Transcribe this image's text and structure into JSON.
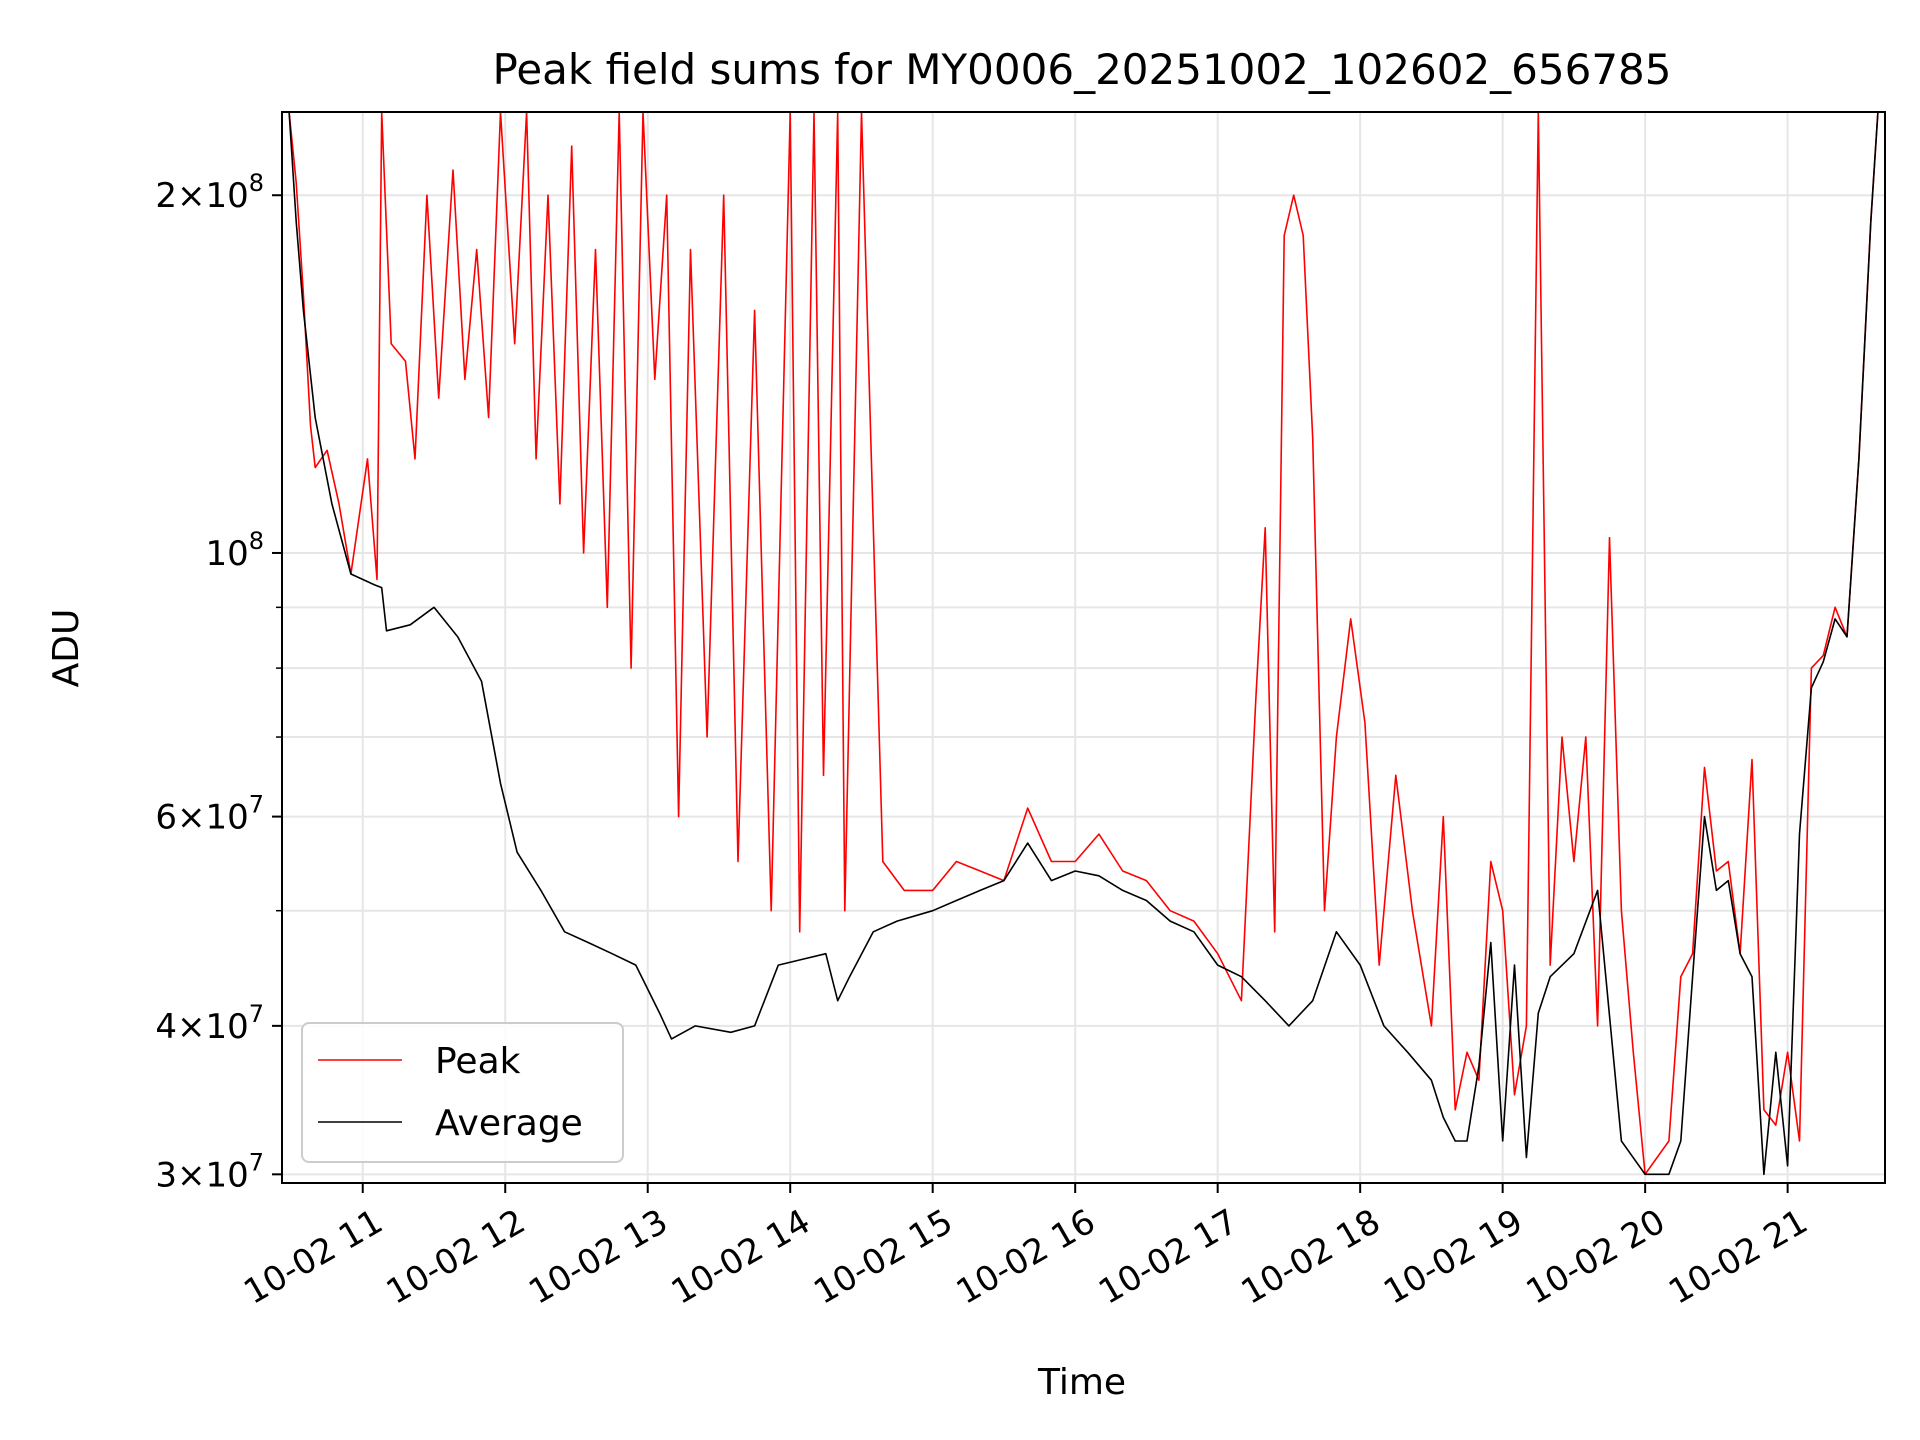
{
  "chart_data": {
    "type": "line",
    "title": "Peak field sums for MY0006_20251002_102602_656785",
    "xlabel": "Time",
    "ylabel": "ADU",
    "y_scale": "log",
    "ylim": [
      29500000,
      235000000
    ],
    "xlim": [
      "2025-10-02T10:26",
      "2025-10-02T21:41"
    ],
    "grid": true,
    "legend_position": "lower-left",
    "x_ticks": [
      {
        "value": "2025-10-02T11:00",
        "label": "10-02 11"
      },
      {
        "value": "2025-10-02T12:00",
        "label": "10-02 12"
      },
      {
        "value": "2025-10-02T13:00",
        "label": "10-02 13"
      },
      {
        "value": "2025-10-02T14:00",
        "label": "10-02 14"
      },
      {
        "value": "2025-10-02T15:00",
        "label": "10-02 15"
      },
      {
        "value": "2025-10-02T16:00",
        "label": "10-02 16"
      },
      {
        "value": "2025-10-02T17:00",
        "label": "10-02 17"
      },
      {
        "value": "2025-10-02T18:00",
        "label": "10-02 18"
      },
      {
        "value": "2025-10-02T19:00",
        "label": "10-02 19"
      },
      {
        "value": "2025-10-02T20:00",
        "label": "10-02 20"
      },
      {
        "value": "2025-10-02T21:00",
        "label": "10-02 21"
      }
    ],
    "y_ticks": [
      {
        "value": 30000000,
        "base": "3×10",
        "exp": "7"
      },
      {
        "value": 40000000,
        "base": "4×10",
        "exp": "7"
      },
      {
        "value": 60000000,
        "base": "6×10",
        "exp": "7"
      },
      {
        "value": 100000000,
        "base": "10",
        "exp": "8"
      },
      {
        "value": 200000000,
        "base": "2×10",
        "exp": "8"
      }
    ],
    "y_minor_ticks": [
      50000000,
      70000000,
      80000000,
      90000000
    ],
    "series": [
      {
        "name": "Average",
        "color": "#000000",
        "x": [
          "2025-10-02T10:29",
          "2025-10-02T10:32",
          "2025-10-02T10:35",
          "2025-10-02T10:40",
          "2025-10-02T10:47",
          "2025-10-02T10:55",
          "2025-10-02T11:05",
          "2025-10-02T11:08",
          "2025-10-02T11:10",
          "2025-10-02T11:20",
          "2025-10-02T11:30",
          "2025-10-02T11:40",
          "2025-10-02T11:50",
          "2025-10-02T11:58",
          "2025-10-02T12:05",
          "2025-10-02T12:15",
          "2025-10-02T12:25",
          "2025-10-02T12:35",
          "2025-10-02T12:45",
          "2025-10-02T12:55",
          "2025-10-02T13:05",
          "2025-10-02T13:10",
          "2025-10-02T13:20",
          "2025-10-02T13:35",
          "2025-10-02T13:45",
          "2025-10-02T13:55",
          "2025-10-02T14:05",
          "2025-10-02T14:15",
          "2025-10-02T14:20",
          "2025-10-02T14:25",
          "2025-10-02T14:35",
          "2025-10-02T14:45",
          "2025-10-02T15:00",
          "2025-10-02T15:10",
          "2025-10-02T15:20",
          "2025-10-02T15:30",
          "2025-10-02T15:40",
          "2025-10-02T15:50",
          "2025-10-02T16:00",
          "2025-10-02T16:10",
          "2025-10-02T16:20",
          "2025-10-02T16:30",
          "2025-10-02T16:40",
          "2025-10-02T16:50",
          "2025-10-02T17:00",
          "2025-10-02T17:10",
          "2025-10-02T17:20",
          "2025-10-02T17:30",
          "2025-10-02T17:40",
          "2025-10-02T17:50",
          "2025-10-02T18:00",
          "2025-10-02T18:10",
          "2025-10-02T18:20",
          "2025-10-02T18:30",
          "2025-10-02T18:35",
          "2025-10-02T18:40",
          "2025-10-02T18:45",
          "2025-10-02T18:50",
          "2025-10-02T18:55",
          "2025-10-02T19:00",
          "2025-10-02T19:05",
          "2025-10-02T19:10",
          "2025-10-02T19:15",
          "2025-10-02T19:20",
          "2025-10-02T19:30",
          "2025-10-02T19:40",
          "2025-10-02T19:50",
          "2025-10-02T20:00",
          "2025-10-02T20:10",
          "2025-10-02T20:15",
          "2025-10-02T20:20",
          "2025-10-02T20:25",
          "2025-10-02T20:30",
          "2025-10-02T20:35",
          "2025-10-02T20:40",
          "2025-10-02T20:45",
          "2025-10-02T20:50",
          "2025-10-02T20:55",
          "2025-10-02T21:00",
          "2025-10-02T21:05",
          "2025-10-02T21:10",
          "2025-10-02T21:15",
          "2025-10-02T21:20",
          "2025-10-02T21:25",
          "2025-10-02T21:30",
          "2025-10-02T21:35",
          "2025-10-02T21:38"
        ],
        "values": [
          235000000,
          190000000,
          160000000,
          130000000,
          110000000,
          96000000,
          94000000,
          93500000,
          86000000,
          87000000,
          90000000,
          85000000,
          78000000,
          64000000,
          56000000,
          52000000,
          48000000,
          47000000,
          46000000,
          45000000,
          41000000,
          39000000,
          40000000,
          39500000,
          40000000,
          45000000,
          45500000,
          46000000,
          42000000,
          44000000,
          48000000,
          49000000,
          50000000,
          51000000,
          52000000,
          53000000,
          57000000,
          53000000,
          54000000,
          53500000,
          52000000,
          51000000,
          49000000,
          48000000,
          45000000,
          44000000,
          42000000,
          40000000,
          42000000,
          48000000,
          45000000,
          40000000,
          38000000,
          36000000,
          33500000,
          32000000,
          32000000,
          37000000,
          47000000,
          32000000,
          45000000,
          31000000,
          41000000,
          44000000,
          46000000,
          52000000,
          32000000,
          30000000,
          30000000,
          32000000,
          44000000,
          60000000,
          52000000,
          53000000,
          46000000,
          44000000,
          30000000,
          38000000,
          30500000,
          58000000,
          77000000,
          81000000,
          88000000,
          85000000,
          120000000,
          190000000,
          235000000
        ]
      },
      {
        "name": "Peak",
        "color": "#ff0000",
        "x": [
          "2025-10-02T10:29",
          "2025-10-02T10:32",
          "2025-10-02T10:35",
          "2025-10-02T10:38",
          "2025-10-02T10:40",
          "2025-10-02T10:45",
          "2025-10-02T10:50",
          "2025-10-02T10:55",
          "2025-10-02T11:02",
          "2025-10-02T11:06",
          "2025-10-02T11:08",
          "2025-10-02T11:12",
          "2025-10-02T11:18",
          "2025-10-02T11:22",
          "2025-10-02T11:27",
          "2025-10-02T11:32",
          "2025-10-02T11:38",
          "2025-10-02T11:43",
          "2025-10-02T11:48",
          "2025-10-02T11:53",
          "2025-10-02T11:58",
          "2025-10-02T12:04",
          "2025-10-02T12:09",
          "2025-10-02T12:13",
          "2025-10-02T12:18",
          "2025-10-02T12:23",
          "2025-10-02T12:28",
          "2025-10-02T12:33",
          "2025-10-02T12:38",
          "2025-10-02T12:43",
          "2025-10-02T12:48",
          "2025-10-02T12:53",
          "2025-10-02T12:58",
          "2025-10-02T13:03",
          "2025-10-02T13:08",
          "2025-10-02T13:13",
          "2025-10-02T13:18",
          "2025-10-02T13:25",
          "2025-10-02T13:32",
          "2025-10-02T13:38",
          "2025-10-02T13:45",
          "2025-10-02T13:52",
          "2025-10-02T14:00",
          "2025-10-02T14:04",
          "2025-10-02T14:10",
          "2025-10-02T14:14",
          "2025-10-02T14:20",
          "2025-10-02T14:23",
          "2025-10-02T14:30",
          "2025-10-02T14:39",
          "2025-10-02T14:48",
          "2025-10-02T15:00",
          "2025-10-02T15:10",
          "2025-10-02T15:20",
          "2025-10-02T15:30",
          "2025-10-02T15:40",
          "2025-10-02T15:50",
          "2025-10-02T16:00",
          "2025-10-02T16:10",
          "2025-10-02T16:20",
          "2025-10-02T16:30",
          "2025-10-02T16:40",
          "2025-10-02T16:50",
          "2025-10-02T17:00",
          "2025-10-02T17:10",
          "2025-10-02T17:16",
          "2025-10-02T17:20",
          "2025-10-02T17:24",
          "2025-10-02T17:28",
          "2025-10-02T17:32",
          "2025-10-02T17:36",
          "2025-10-02T17:40",
          "2025-10-02T17:45",
          "2025-10-02T17:50",
          "2025-10-02T17:56",
          "2025-10-02T18:02",
          "2025-10-02T18:08",
          "2025-10-02T18:15",
          "2025-10-02T18:22",
          "2025-10-02T18:30",
          "2025-10-02T18:35",
          "2025-10-02T18:40",
          "2025-10-02T18:45",
          "2025-10-02T18:50",
          "2025-10-02T18:55",
          "2025-10-02T19:00",
          "2025-10-02T19:05",
          "2025-10-02T19:10",
          "2025-10-02T19:15",
          "2025-10-02T19:20",
          "2025-10-02T19:25",
          "2025-10-02T19:30",
          "2025-10-02T19:35",
          "2025-10-02T19:40",
          "2025-10-02T19:45",
          "2025-10-02T19:50",
          "2025-10-02T19:55",
          "2025-10-02T20:00",
          "2025-10-02T20:10",
          "2025-10-02T20:15",
          "2025-10-02T20:20",
          "2025-10-02T20:25",
          "2025-10-02T20:30",
          "2025-10-02T20:35",
          "2025-10-02T20:40",
          "2025-10-02T20:45",
          "2025-10-02T20:50",
          "2025-10-02T20:55",
          "2025-10-02T21:00",
          "2025-10-02T21:05",
          "2025-10-02T21:10",
          "2025-10-02T21:15",
          "2025-10-02T21:20",
          "2025-10-02T21:25",
          "2025-10-02T21:30",
          "2025-10-02T21:35",
          "2025-10-02T21:38"
        ],
        "values": [
          235000000,
          205000000,
          165000000,
          128000000,
          118000000,
          122000000,
          110000000,
          96000000,
          120000000,
          95000000,
          235000000,
          150000000,
          145000000,
          120000000,
          200000000,
          135000000,
          210000000,
          140000000,
          180000000,
          130000000,
          235000000,
          150000000,
          235000000,
          120000000,
          200000000,
          110000000,
          220000000,
          100000000,
          180000000,
          90000000,
          235000000,
          80000000,
          235000000,
          140000000,
          200000000,
          60000000,
          180000000,
          70000000,
          200000000,
          55000000,
          160000000,
          50000000,
          235000000,
          48000000,
          235000000,
          65000000,
          235000000,
          50000000,
          235000000,
          55000000,
          52000000,
          52000000,
          55000000,
          54000000,
          53000000,
          61000000,
          55000000,
          55000000,
          58000000,
          54000000,
          53000000,
          50000000,
          49000000,
          46000000,
          42000000,
          75000000,
          105000000,
          48000000,
          185000000,
          200000000,
          185000000,
          125000000,
          50000000,
          70000000,
          88000000,
          72000000,
          45000000,
          65000000,
          50000000,
          40000000,
          60000000,
          34000000,
          38000000,
          36000000,
          55000000,
          50000000,
          35000000,
          40000000,
          235000000,
          45000000,
          70000000,
          55000000,
          70000000,
          40000000,
          103000000,
          50000000,
          38000000,
          30000000,
          32000000,
          44000000,
          46000000,
          66000000,
          54000000,
          55000000,
          46000000,
          67000000,
          34000000,
          33000000,
          38000000,
          32000000,
          80000000,
          82000000,
          90000000,
          85000000,
          120000000,
          190000000,
          235000000
        ]
      }
    ]
  }
}
